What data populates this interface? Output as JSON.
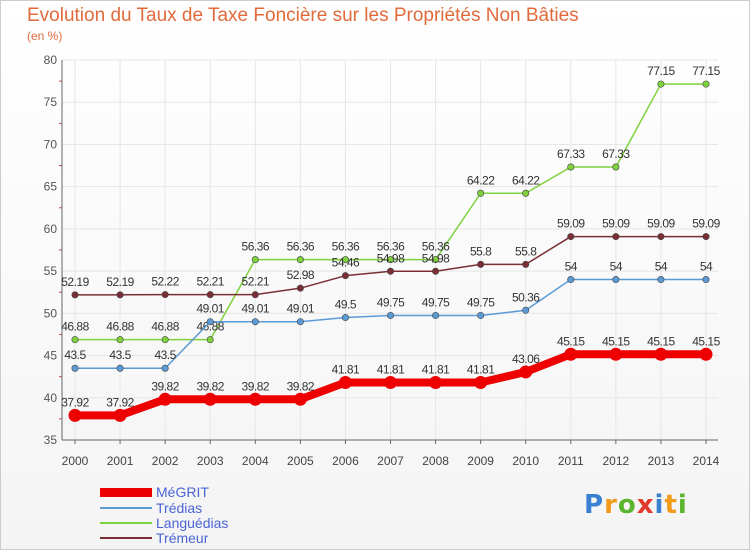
{
  "colors": {
    "title": "#e06a3c",
    "axis": "#666666",
    "grid": "#e6e6e6",
    "legend_text": "#4a64d6"
  },
  "chart_data": {
    "type": "line",
    "title": "Evolution du Taux de Taxe Foncière sur les Propriétés Non Bâties",
    "ylabel": "(en %)",
    "xlabel": "",
    "ylim": [
      35,
      80
    ],
    "yticks": [
      "35",
      "40",
      "45",
      "50",
      "55",
      "60",
      "65",
      "70",
      "75",
      "80"
    ],
    "categories": [
      "2000",
      "2001",
      "2002",
      "2003",
      "2004",
      "2005",
      "2006",
      "2007",
      "2008",
      "2009",
      "2010",
      "2011",
      "2012",
      "2013",
      "2014"
    ],
    "series": [
      {
        "name": "Languédias",
        "color": "#7ed23c",
        "values": [
          46.88,
          46.88,
          46.88,
          46.88,
          56.36,
          56.36,
          56.36,
          56.36,
          56.36,
          64.22,
          64.22,
          67.33,
          67.33,
          77.15,
          77.15
        ],
        "labels": [
          "46.88",
          "46.88",
          "46.88",
          "46.88",
          "56.36",
          "56.36",
          "56.36",
          "56.36",
          "56.36",
          "64.22",
          "64.22",
          "67.33",
          "67.33",
          "77.15",
          "77.15"
        ]
      },
      {
        "name": "Trémeur",
        "color": "#7a2f35",
        "values": [
          52.19,
          52.19,
          52.22,
          52.21,
          52.21,
          52.98,
          54.46,
          54.98,
          54.98,
          55.8,
          55.8,
          59.09,
          59.09,
          59.09,
          59.09
        ],
        "labels": [
          "52.19",
          "52.19",
          "52.22",
          "52.21",
          "52.21",
          "52.98",
          "54.46",
          "54.98",
          "54.98",
          "55.8",
          "55.8",
          "59.09",
          "59.09",
          "59.09",
          "59.09"
        ]
      },
      {
        "name": "Trédias",
        "color": "#5b9bd5",
        "values": [
          43.5,
          43.5,
          43.5,
          49.01,
          49.01,
          49.01,
          49.5,
          49.75,
          49.75,
          49.75,
          50.36,
          54,
          54,
          54,
          54
        ],
        "labels": [
          "43.5",
          "43.5",
          "43.5",
          "49.01",
          "49.01",
          "49.01",
          "49.5",
          "49.75",
          "49.75",
          "49.75",
          "50.36",
          "54",
          "54",
          "54",
          "54"
        ]
      },
      {
        "name": "MéGRIT",
        "color": "#ee0000",
        "values": [
          37.92,
          37.92,
          39.82,
          39.82,
          39.82,
          39.82,
          41.81,
          41.81,
          41.81,
          41.81,
          43.06,
          45.15,
          45.15,
          45.15,
          45.15
        ],
        "labels": [
          "37.92",
          "37.92",
          "39.82",
          "39.82",
          "39.82",
          "39.82",
          "41.81",
          "41.81",
          "41.81",
          "41.81",
          "43.06",
          "45.15",
          "45.15",
          "45.15",
          "45.15"
        ]
      }
    ]
  },
  "legend": [
    {
      "label": "MéGRIT",
      "color": "#ee0000",
      "thick": true
    },
    {
      "label": "Trédias",
      "color": "#5b9bd5",
      "thick": false
    },
    {
      "label": "Languédias",
      "color": "#7ed23c",
      "thick": false
    },
    {
      "label": "Trémeur",
      "color": "#7a2f35",
      "thick": false
    }
  ],
  "brand": {
    "letters": [
      {
        "char": "P",
        "color": "#3a7fd0"
      },
      {
        "char": "r",
        "color": "#f29a1a"
      },
      {
        "char": "o",
        "color": "#5bb52f"
      },
      {
        "char": "x",
        "color": "#e23a2a"
      },
      {
        "char": "i",
        "color": "#3a7fd0"
      },
      {
        "char": "t",
        "color": "#f29a1a"
      },
      {
        "char": "i",
        "color": "#5bb52f"
      }
    ]
  }
}
